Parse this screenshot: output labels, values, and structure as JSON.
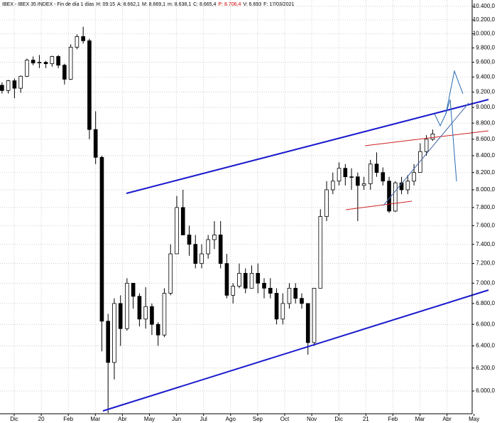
{
  "chart_data": {
    "type": "candlestick",
    "header": [
      {
        "text": "IBEX - IBEX 35 INDEX - Fin de día 1 días",
        "color": "#000000"
      },
      {
        "text": "H: 09:15",
        "color": "#000000"
      },
      {
        "text": "A: 8.662,1",
        "color": "#000000"
      },
      {
        "text": "M: 8.669,1",
        "color": "#000000"
      },
      {
        "text": "m: 8.638,1",
        "color": "#000000"
      },
      {
        "text": "C: 8.665,4",
        "color": "#000000"
      },
      {
        "text": "P: 8.706,4",
        "color": "#cc0000"
      },
      {
        "text": "V: 6.693",
        "color": "#000000"
      },
      {
        "text": "F: 17/03/2021",
        "color": "#000000"
      }
    ],
    "log_scale": true,
    "grid": true,
    "up_color": "#ffffff",
    "down_color": "#000000",
    "xlim": [
      -0.525,
      16.93
    ],
    "xticks": [
      {
        "value": 0,
        "label": "Dic"
      },
      {
        "value": 1,
        "label": "20"
      },
      {
        "value": 2,
        "label": "Feb"
      },
      {
        "value": 3,
        "label": "Mar"
      },
      {
        "value": 4,
        "label": "Abr"
      },
      {
        "value": 5,
        "label": "May"
      },
      {
        "value": 6,
        "label": "Jun"
      },
      {
        "value": 7,
        "label": "Jul"
      },
      {
        "value": 8,
        "label": "Ago"
      },
      {
        "value": 9,
        "label": "Sep"
      },
      {
        "value": 10,
        "label": "Oct"
      },
      {
        "value": 11,
        "label": "Nov"
      },
      {
        "value": 12,
        "label": "Dic"
      },
      {
        "value": 13,
        "label": "21"
      },
      {
        "value": 14,
        "label": "Feb"
      },
      {
        "value": 15,
        "label": "Mar"
      },
      {
        "value": 16,
        "label": "Abr"
      },
      {
        "value": 17,
        "label": "May"
      }
    ],
    "ylim": [
      5808,
      10494
    ],
    "yticks": [
      {
        "value": 6000,
        "label": "6.000,0"
      },
      {
        "value": 6200,
        "label": "6.200,0"
      },
      {
        "value": 6400,
        "label": "6.400,0"
      },
      {
        "value": 6600,
        "label": "6.600,0"
      },
      {
        "value": 6800,
        "label": "6.800,0"
      },
      {
        "value": 7000,
        "label": "7.000,0"
      },
      {
        "value": 7200,
        "label": "7.200,0"
      },
      {
        "value": 7400,
        "label": "7.400,0"
      },
      {
        "value": 7600,
        "label": "7.600,0"
      },
      {
        "value": 7800,
        "label": "7.800,0"
      },
      {
        "value": 8000,
        "label": "8.000,0"
      },
      {
        "value": 8200,
        "label": "8.200,0"
      },
      {
        "value": 8400,
        "label": "8.400,0"
      },
      {
        "value": 8600,
        "label": "8.600,0"
      },
      {
        "value": 8800,
        "label": "8.800,0"
      },
      {
        "value": 9000,
        "label": "9.000,0"
      },
      {
        "value": 9200,
        "label": "9.200,0"
      },
      {
        "value": 9400,
        "label": "9.400,0"
      },
      {
        "value": 9600,
        "label": "9.600,0"
      },
      {
        "value": 9800,
        "label": "9.800,0"
      },
      {
        "value": 10000,
        "label": "10.000,0"
      },
      {
        "value": 10200,
        "label": "10.200,0"
      },
      {
        "value": 10400,
        "label": "10.400,0"
      }
    ],
    "x": [
      -0.45,
      -0.22,
      0.01,
      0.24,
      0.47,
      0.7,
      0.93,
      1.17,
      1.4,
      1.63,
      1.86,
      2.09,
      2.32,
      2.55,
      2.78,
      3.01,
      3.24,
      3.47,
      3.7,
      3.93,
      4.17,
      4.4,
      4.63,
      4.86,
      5.09,
      5.32,
      5.55,
      5.78,
      6.01,
      6.24,
      6.47,
      6.7,
      6.93,
      7.17,
      7.4,
      7.63,
      7.86,
      8.09,
      8.32,
      8.55,
      8.78,
      9.01,
      9.24,
      9.47,
      9.7,
      9.93,
      10.17,
      10.4,
      10.63,
      10.86,
      11.09,
      11.32,
      11.55,
      11.78,
      12.01,
      12.24,
      12.47,
      12.7,
      12.93,
      13.17,
      13.4,
      13.63,
      13.86,
      14.09,
      14.32,
      14.55,
      14.78,
      15.01,
      15.24,
      15.47
    ],
    "open": [
      9290,
      9220,
      9350,
      9250,
      9410,
      9630,
      9590,
      9600,
      9580,
      9680,
      9560,
      9370,
      9810,
      9960,
      9900,
      8720,
      8380,
      6630,
      6250,
      6800,
      6560,
      7000,
      6870,
      6650,
      6770,
      6600,
      6500,
      6900,
      7300,
      7800,
      7500,
      7400,
      7200,
      7300,
      7450,
      7500,
      7200,
      6880,
      6970,
      7100,
      6950,
      7100,
      7000,
      6950,
      6900,
      6650,
      6800,
      6950,
      6850,
      6800,
      6430,
      6950,
      7700,
      8000,
      8100,
      8250,
      8150,
      8150,
      8050,
      8070,
      8300,
      8200,
      8100,
      7760,
      8080,
      8000,
      8100,
      8200,
      8450,
      8600
    ],
    "high": [
      9330,
      9360,
      9380,
      9420,
      9650,
      9680,
      9700,
      9620,
      9690,
      9700,
      9580,
      9850,
      9990,
      10100,
      9930,
      8950,
      8400,
      6700,
      6850,
      6880,
      7050,
      7000,
      6900,
      6960,
      6800,
      6620,
      6950,
      7400,
      7930,
      8000,
      7600,
      7500,
      7400,
      7500,
      7650,
      7650,
      7300,
      7000,
      7200,
      7150,
      7180,
      7200,
      7050,
      7050,
      6950,
      6900,
      7000,
      7000,
      6900,
      6800,
      6950,
      7780,
      8100,
      8200,
      8320,
      8300,
      8250,
      8200,
      8150,
      8350,
      8440,
      8260,
      8150,
      8100,
      8150,
      8170,
      8300,
      8550,
      8650,
      8720
    ],
    "low": [
      9180,
      9180,
      9120,
      9190,
      9400,
      9560,
      9520,
      9520,
      9540,
      9520,
      9300,
      9360,
      9780,
      9860,
      8600,
      8300,
      6350,
      5814,
      6100,
      6400,
      6540,
      6750,
      6580,
      6560,
      6500,
      6400,
      6480,
      6880,
      7300,
      7500,
      7280,
      7150,
      7150,
      7250,
      7350,
      7150,
      6850,
      6800,
      6950,
      6900,
      6950,
      6900,
      6850,
      6850,
      6600,
      6600,
      6750,
      6800,
      6750,
      6320,
      6400,
      6950,
      7650,
      7950,
      8050,
      8050,
      8000,
      7650,
      8000,
      8000,
      8150,
      8050,
      7740,
      7750,
      7950,
      7950,
      8050,
      8200,
      8400,
      8580
    ],
    "close": [
      9220,
      9350,
      9250,
      9410,
      9630,
      9590,
      9600,
      9580,
      9680,
      9560,
      9370,
      9810,
      9960,
      9900,
      8720,
      8380,
      6630,
      6250,
      6800,
      6560,
      7000,
      6870,
      6650,
      6770,
      6600,
      6500,
      6900,
      7300,
      7800,
      7500,
      7400,
      7200,
      7300,
      7450,
      7500,
      7200,
      6880,
      6970,
      7100,
      6950,
      7100,
      7000,
      6950,
      6900,
      6650,
      6800,
      6950,
      6850,
      6800,
      6430,
      6950,
      7700,
      8000,
      8100,
      8250,
      8150,
      8150,
      8050,
      8070,
      8300,
      8200,
      8100,
      7760,
      8080,
      8000,
      8100,
      8200,
      8450,
      8600,
      8665
    ]
  }
}
